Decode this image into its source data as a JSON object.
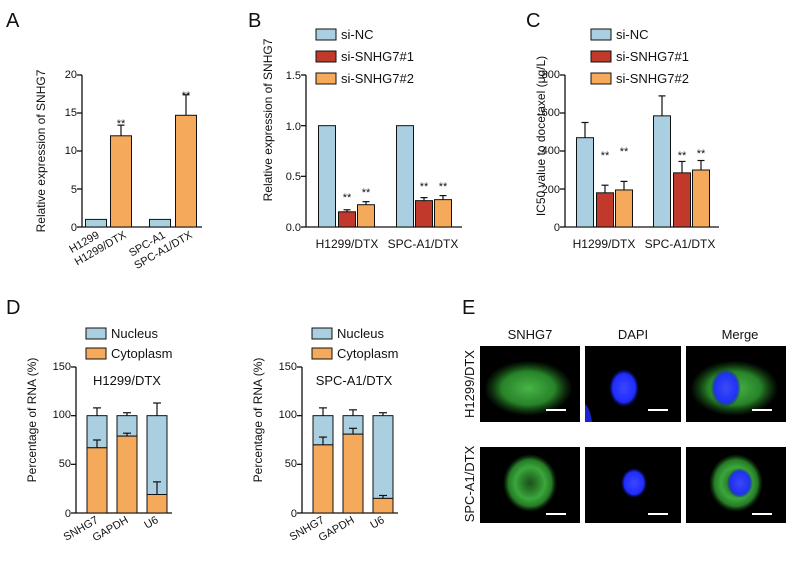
{
  "colors": {
    "blue": "#a9cfe0",
    "red": "#c0392b",
    "orange": "#f5a95a",
    "axis": "#111111",
    "micro_bg": "#000000",
    "green": "#2f9a2f",
    "dapi": "#1e2cff"
  },
  "panel_labels": {
    "a": "A",
    "b": "B",
    "c": "C",
    "d": "D",
    "e": "E"
  },
  "panel_a": {
    "ylabel": "Relative expression of SNHG7",
    "yticks": [
      "0",
      "5",
      "10",
      "15",
      "20"
    ],
    "categories": [
      "H1299",
      "H1299/DTX",
      "SPC-A1",
      "SPC-A1/DTX"
    ],
    "stars": [
      "**",
      "**"
    ]
  },
  "panel_b": {
    "ylabel": "Relative expression of SNHG7",
    "yticks": [
      "0.0",
      "0.5",
      "1.0",
      "1.5"
    ],
    "categories": [
      "H1299/DTX",
      "SPC-A1/DTX"
    ],
    "legend": [
      "si-NC",
      "si-SNHG7#1",
      "si-SNHG7#2"
    ],
    "stars": [
      "**",
      "**",
      "**",
      "**"
    ]
  },
  "panel_c": {
    "ylabel": "IC50 value to docetaxel (μg/L)",
    "yticks": [
      "0",
      "200",
      "400",
      "600",
      "800"
    ],
    "categories": [
      "H1299/DTX",
      "SPC-A1/DTX"
    ],
    "legend": [
      "si-NC",
      "si-SNHG7#1",
      "si-SNHG7#2"
    ],
    "stars": [
      "**",
      "**",
      "**",
      "**"
    ]
  },
  "panel_d": {
    "legend": [
      "Nucleus",
      "Cytoplasm"
    ],
    "left": {
      "title": "H1299/DTX",
      "ylabel": "Percentage of RNA (%)",
      "yticks": [
        "0",
        "50",
        "100",
        "150"
      ],
      "categories": [
        "SNHG7",
        "GAPDH",
        "U6"
      ]
    },
    "right": {
      "title": "SPC-A1/DTX",
      "ylabel": "Percentage of RNA (%)",
      "yticks": [
        "0",
        "50",
        "100",
        "150"
      ],
      "categories": [
        "SNHG7",
        "GAPDH",
        "U6"
      ]
    }
  },
  "panel_e": {
    "columns": [
      "SNHG7",
      "DAPI",
      "Merge"
    ],
    "rows": [
      "H1299/DTX",
      "SPC-A1/DTX"
    ]
  },
  "chart_data": [
    {
      "panel": "A",
      "type": "bar",
      "categories": [
        "H1299",
        "H1299/DTX",
        "SPC-A1",
        "SPC-A1/DTX"
      ],
      "values": [
        1.0,
        12.0,
        1.0,
        14.7
      ],
      "errors": [
        0,
        1.4,
        0,
        2.7
      ],
      "colors": [
        "#a9cfe0",
        "#f5a95a",
        "#a9cfe0",
        "#f5a95a"
      ],
      "significance": [
        "",
        "**",
        "",
        "**"
      ],
      "ylabel": "Relative expression of SNHG7",
      "ylim": [
        0,
        20
      ]
    },
    {
      "panel": "B",
      "type": "bar",
      "categories": [
        "H1299/DTX",
        "SPC-A1/DTX"
      ],
      "series": [
        {
          "name": "si-NC",
          "values": [
            1.0,
            1.0
          ],
          "errors": [
            0,
            0
          ]
        },
        {
          "name": "si-SNHG7#1",
          "values": [
            0.15,
            0.26
          ],
          "errors": [
            0.02,
            0.03
          ]
        },
        {
          "name": "si-SNHG7#2",
          "values": [
            0.22,
            0.27
          ],
          "errors": [
            0.03,
            0.04
          ]
        }
      ],
      "significance": [
        [
          "",
          "**",
          "**"
        ],
        [
          "",
          "**",
          "**"
        ]
      ],
      "ylabel": "Relative expression of SNHG7",
      "ylim": [
        0,
        1.5
      ],
      "legend": "top"
    },
    {
      "panel": "C",
      "type": "bar",
      "categories": [
        "H1299/DTX",
        "SPC-A1/DTX"
      ],
      "series": [
        {
          "name": "si-NC",
          "values": [
            470,
            585
          ],
          "errors": [
            80,
            105
          ]
        },
        {
          "name": "si-SNHG7#1",
          "values": [
            180,
            285
          ],
          "errors": [
            40,
            60
          ]
        },
        {
          "name": "si-SNHG7#2",
          "values": [
            195,
            300
          ],
          "errors": [
            45,
            50
          ]
        }
      ],
      "significance": [
        [
          "",
          "**",
          "**"
        ],
        [
          "",
          "**",
          "**"
        ]
      ],
      "ylabel": "IC50 value to docetaxel (μg/L)",
      "ylim": [
        0,
        800
      ],
      "legend": "top"
    },
    {
      "panel": "D-left",
      "type": "bar",
      "stacked": true,
      "title": "H1299/DTX",
      "categories": [
        "SNHG7",
        "GAPDH",
        "U6"
      ],
      "series": [
        {
          "name": "Cytoplasm",
          "values": [
            67,
            79,
            19
          ],
          "errors": [
            8,
            3,
            13
          ]
        },
        {
          "name": "Nucleus",
          "values": [
            33,
            21,
            81
          ],
          "errors": [
            8,
            3,
            13
          ]
        }
      ],
      "ylabel": "Percentage of RNA (%)",
      "ylim": [
        0,
        150
      ],
      "legend": "top"
    },
    {
      "panel": "D-right",
      "type": "bar",
      "stacked": true,
      "title": "SPC-A1/DTX",
      "categories": [
        "SNHG7",
        "GAPDH",
        "U6"
      ],
      "series": [
        {
          "name": "Cytoplasm",
          "values": [
            70,
            81,
            15
          ],
          "errors": [
            8,
            6,
            3
          ]
        },
        {
          "name": "Nucleus",
          "values": [
            30,
            19,
            85
          ],
          "errors": [
            8,
            6,
            3
          ]
        }
      ],
      "ylabel": "Percentage of RNA (%)",
      "ylim": [
        0,
        150
      ],
      "legend": "top"
    }
  ]
}
